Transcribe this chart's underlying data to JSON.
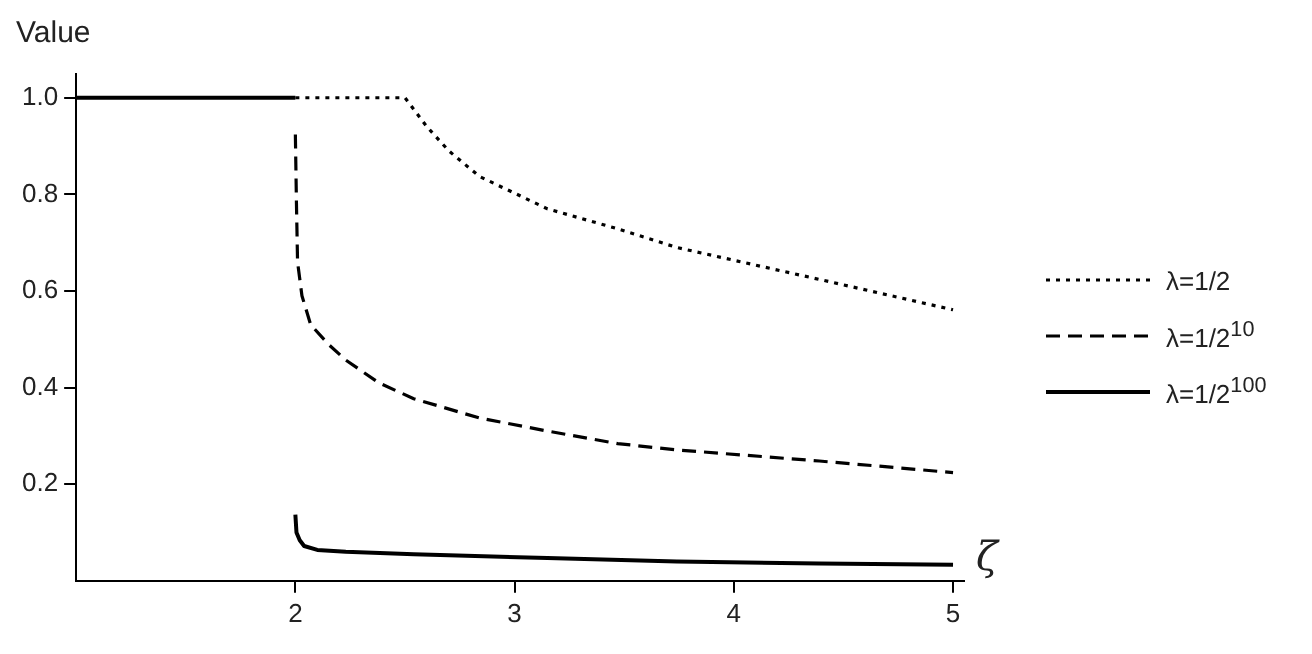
{
  "chart_data": {
    "type": "line",
    "ylabel": "Value",
    "xlabel": "ζ",
    "xlim": [
      1,
      5.05
    ],
    "ylim": [
      0,
      1.05
    ],
    "xticks": [
      2,
      3,
      4,
      5
    ],
    "yticks": [
      {
        "value": 0.2,
        "label": "0.2"
      },
      {
        "value": 0.4,
        "label": "0.4"
      },
      {
        "value": 0.6,
        "label": "0.6"
      },
      {
        "value": 0.8,
        "label": "0.8"
      },
      {
        "value": 1,
        "label": "1.0"
      }
    ],
    "grid": false,
    "legend": "right",
    "marker": "none",
    "series": [
      {
        "name": "λ=1/2",
        "color": "#000000",
        "line_style": "dotted",
        "x": [
          2,
          2.5,
          2.6,
          2.7,
          2.84,
          3.15,
          3.46,
          3.74,
          4.39,
          5
        ],
        "values": [
          1,
          1,
          0.94,
          0.89,
          0.837,
          0.77,
          0.73,
          0.69,
          0.624,
          0.561
        ]
      },
      {
        "name": "λ=1/2$^{10}$",
        "color": "#000000",
        "line_style": "dashed",
        "x": [
          2,
          2.005,
          2.01,
          2.03,
          2.07,
          2.15,
          2.23,
          2.38,
          2.54,
          2.84,
          3.15,
          3.47,
          3.74,
          4.39,
          5
        ],
        "values": [
          0.924,
          0.78,
          0.66,
          0.59,
          0.53,
          0.49,
          0.457,
          0.41,
          0.377,
          0.337,
          0.31,
          0.284,
          0.271,
          0.248,
          0.224
        ]
      },
      {
        "name": "λ=1/2$^{100}$",
        "color": "#000000",
        "line_style": "solid",
        "x": [
          2,
          2.005,
          2.02,
          2.04,
          2.1,
          2.23,
          2.54,
          3.15,
          3.74,
          4.39,
          5
        ],
        "values": [
          0.137,
          0.1,
          0.084,
          0.072,
          0.064,
          0.06,
          0.055,
          0.047,
          0.04,
          0.036,
          0.033
        ]
      },
      {
        "color": "#000000",
        "line_style": "solid",
        "x": [
          1,
          2
        ],
        "values": [
          1,
          1
        ]
      }
    ]
  }
}
